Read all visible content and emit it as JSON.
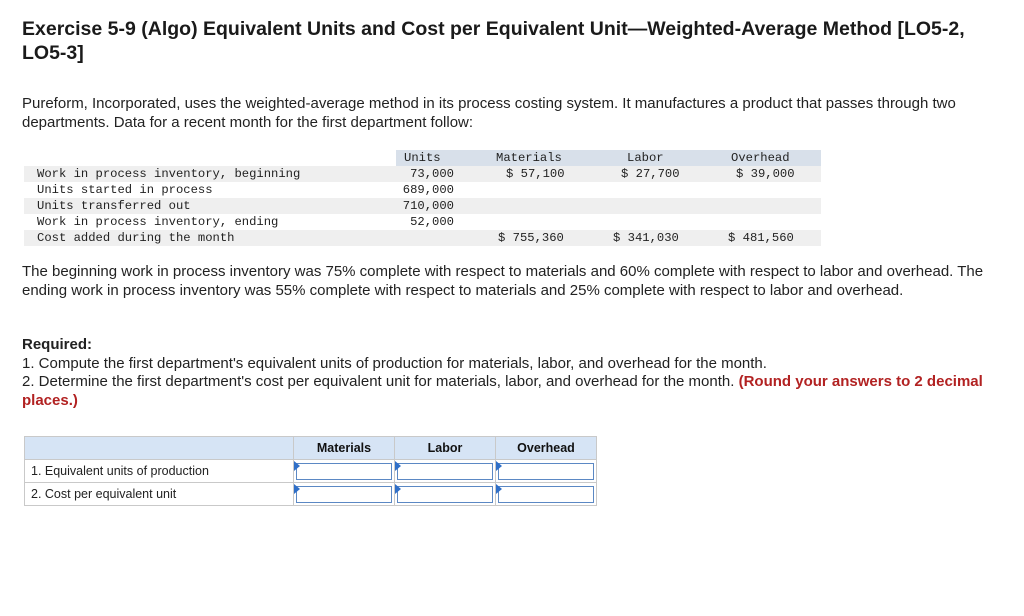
{
  "title": "Exercise 5-9 (Algo) Equivalent Units and Cost per Equivalent Unit—Weighted-Average Method [LO5-2, LO5-3]",
  "intro": "Pureform, Incorporated, uses the weighted-average method in its process costing system. It manufactures a product that passes through two departments. Data for a recent month for the first department follow:",
  "data_table": {
    "headers": {
      "units": "Units",
      "materials": "Materials",
      "labor": "Labor",
      "overhead": "Overhead"
    },
    "rows": [
      {
        "label": "Work in process inventory, beginning",
        "units": "73,000",
        "materials": "$ 57,100",
        "labor": "$ 27,700",
        "overhead": "$ 39,000"
      },
      {
        "label": "Units started in process",
        "units": "689,000",
        "materials": "",
        "labor": "",
        "overhead": ""
      },
      {
        "label": "Units transferred out",
        "units": "710,000",
        "materials": "",
        "labor": "",
        "overhead": ""
      },
      {
        "label": "Work in process inventory, ending",
        "units": "52,000",
        "materials": "",
        "labor": "",
        "overhead": ""
      },
      {
        "label": "Cost added during the month",
        "units": "",
        "materials": "$ 755,360",
        "labor": "$ 341,030",
        "overhead": "$ 481,560"
      }
    ]
  },
  "note": "The beginning work in process inventory was 75% complete with respect to materials and 60% complete with respect to labor and overhead. The ending work in process inventory was 55% complete with respect to materials and 25% complete with respect to labor and overhead.",
  "required": {
    "heading": "Required:",
    "item1": "1. Compute the first department's equivalent units of production for materials, labor, and overhead for the month.",
    "item2": "2. Determine the first department's cost per equivalent unit for materials, labor, and overhead for the month.",
    "item2_note": "(Round your answers to 2 decimal places.)"
  },
  "answer_table": {
    "columns": [
      "Materials",
      "Labor",
      "Overhead"
    ],
    "rows": [
      {
        "label": "1. Equivalent units of production",
        "materials": "",
        "labor": "",
        "overhead": ""
      },
      {
        "label": "2. Cost per equivalent unit",
        "materials": "",
        "labor": "",
        "overhead": ""
      }
    ]
  }
}
